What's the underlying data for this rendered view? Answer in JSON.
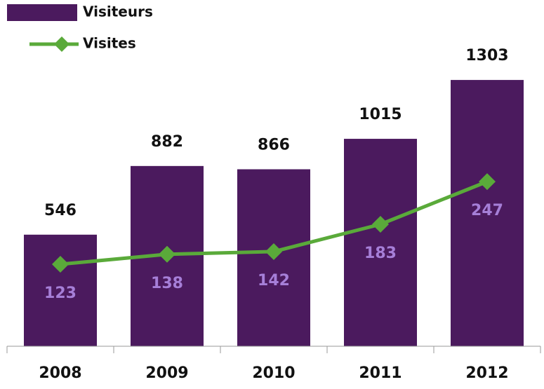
{
  "chart_data": {
    "type": "bar",
    "categories": [
      "2008",
      "2009",
      "2010",
      "2011",
      "2012"
    ],
    "series": [
      {
        "name": "Visiteurs",
        "type": "bar",
        "color": "#4b1a5e",
        "values": [
          546,
          882,
          866,
          1015,
          1303
        ]
      },
      {
        "name": "Visites",
        "type": "line",
        "axis": "y2",
        "color": "#5aaa3a",
        "label_color": "#a67fd8",
        "values": [
          123,
          138,
          142,
          183,
          247
        ]
      }
    ],
    "ylim": [
      0,
      1660
    ],
    "y2lim": [
      0,
      509
    ],
    "legend": "top-left"
  }
}
